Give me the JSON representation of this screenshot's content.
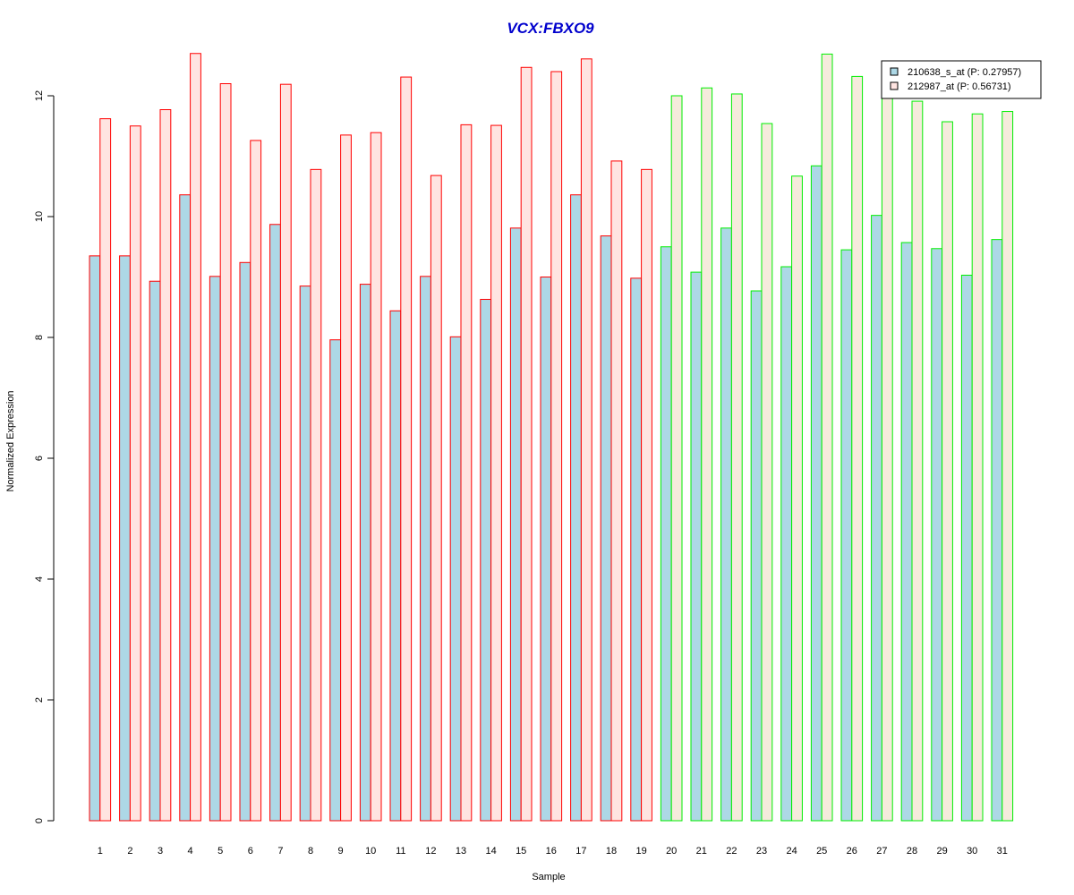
{
  "chart_data": {
    "type": "bar",
    "title": "VCX:FBXO9",
    "xlabel": "Sample",
    "ylabel": "Normalized Expression",
    "ylim": [
      0,
      12.7
    ],
    "yticks": [
      "0",
      "2",
      "4",
      "6",
      "8",
      "10",
      "12"
    ],
    "categories": [
      "1",
      "2",
      "3",
      "4",
      "5",
      "6",
      "7",
      "8",
      "9",
      "10",
      "11",
      "12",
      "13",
      "14",
      "15",
      "16",
      "17",
      "18",
      "19",
      "20",
      "21",
      "22",
      "23",
      "24",
      "25",
      "26",
      "27",
      "28",
      "29",
      "30",
      "31"
    ],
    "group_split_after": 19,
    "series": [
      {
        "name": "210638_s_at (P: 0.27957)",
        "values": [
          9.35,
          9.35,
          8.93,
          10.36,
          9.01,
          9.24,
          9.87,
          8.85,
          7.96,
          8.88,
          8.44,
          9.01,
          8.01,
          8.63,
          9.81,
          9.0,
          10.36,
          9.68,
          8.98,
          9.5,
          9.08,
          9.81,
          8.77,
          9.17,
          10.84,
          9.45,
          10.02,
          9.57,
          9.47,
          9.03,
          9.62
        ]
      },
      {
        "name": "212987_at (P: 0.56731)",
        "values": [
          11.62,
          11.5,
          11.77,
          12.7,
          12.2,
          11.26,
          12.19,
          10.78,
          11.35,
          11.39,
          12.31,
          10.68,
          11.52,
          11.51,
          12.47,
          12.4,
          12.61,
          10.92,
          10.78,
          12.0,
          12.13,
          12.03,
          11.54,
          10.67,
          12.69,
          12.32,
          12.0,
          11.91,
          11.57,
          11.7,
          11.74
        ]
      }
    ],
    "colors": {
      "series1_fill": "#add8e6",
      "series2_fill_group1": "#ffe4e1",
      "series2_fill_group2": "#f5ebdc",
      "border_group1": "#ff0000",
      "border_group2": "#00ee00",
      "title": "#0000cd"
    },
    "legend_position": "top-right",
    "grid": false
  }
}
